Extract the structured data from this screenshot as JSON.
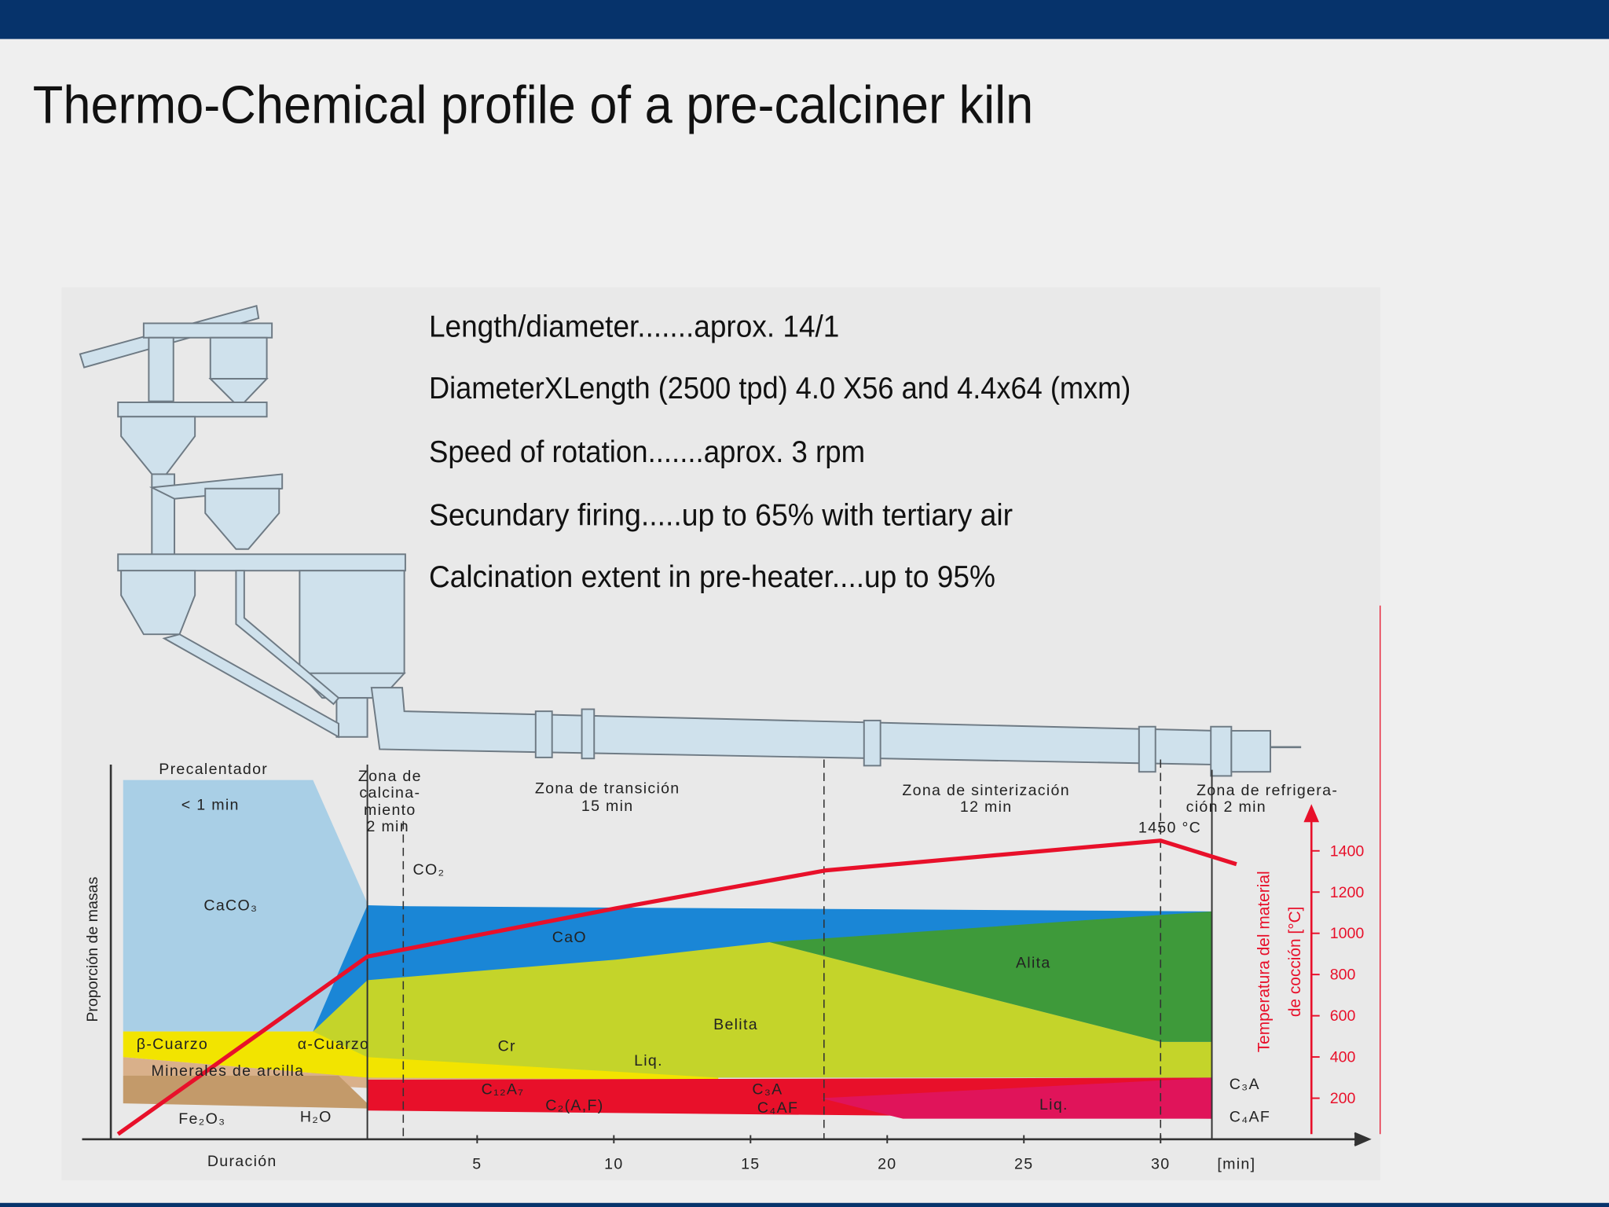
{
  "title": "Thermo-Chemical profile of a pre-calciner kiln",
  "specs": [
    "Length/diameter.......aprox. 14/1",
    "DiameterXLength (2500 tpd) 4.0 X56 and 4.4x64 (mxm)",
    "Speed of rotation.......aprox. 3 rpm",
    "Secundary firing.....up to 65% with tertiary air",
    "Calcination extent in pre-heater....up to 95%"
  ],
  "diagram": {
    "zones": {
      "preheater": [
        "Precalentador",
        "< 1 min"
      ],
      "calcination": [
        "Zona de",
        "calcina-",
        "miento",
        "2 min"
      ],
      "transition": [
        "Zona de transición",
        "15 min"
      ],
      "sintering": [
        "Zona de sinterización",
        "12 min"
      ],
      "cooling": [
        "Zona de refrigera-",
        "ción 2 min"
      ]
    },
    "peak_temperature": "1450 °C",
    "phases": {
      "co2": "CO₂",
      "caco3": "CaCO₃",
      "cao": "CaO",
      "alita": "Alita",
      "belita": "Belita",
      "beta_quartz": "β-Cuarzo",
      "alpha_quartz": "α-Cuarzo",
      "cr": "Cr",
      "liq_1": "Liq.",
      "clay": "Minerales de arcilla",
      "c12a7": "C₁₂A₇",
      "c2af": "C₂(A,F)",
      "c3a": "C₃A",
      "c4af": "C₄AF",
      "liq_2": "Liq.",
      "fe2o3": "Fe₂O₃",
      "h2o": "H₂O",
      "c3a_end": "C₃A",
      "c4af_end": "C₄AF"
    },
    "y_axis_label": "Proporción de masas",
    "temperature_axis": {
      "label": [
        "Temperatura del material",
        "de cocción [°C]"
      ],
      "ticks": [
        1400,
        1200,
        1000,
        800,
        600,
        400,
        200
      ]
    },
    "time_axis": {
      "label": "Duración",
      "ticks": [
        5,
        10,
        15,
        20,
        25,
        30
      ],
      "unit": "[min]"
    }
  }
}
